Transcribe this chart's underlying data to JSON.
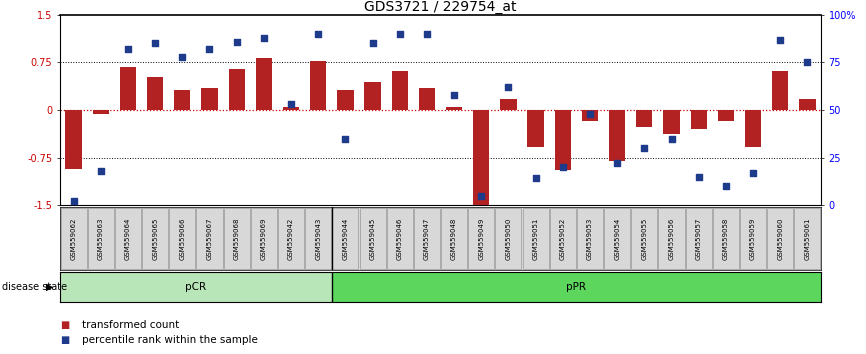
{
  "title": "GDS3721 / 229754_at",
  "samples": [
    "GSM559062",
    "GSM559063",
    "GSM559064",
    "GSM559065",
    "GSM559066",
    "GSM559067",
    "GSM559068",
    "GSM559069",
    "GSM559042",
    "GSM559043",
    "GSM559044",
    "GSM559045",
    "GSM559046",
    "GSM559047",
    "GSM559048",
    "GSM559049",
    "GSM559050",
    "GSM559051",
    "GSM559052",
    "GSM559053",
    "GSM559054",
    "GSM559055",
    "GSM559056",
    "GSM559057",
    "GSM559058",
    "GSM559059",
    "GSM559060",
    "GSM559061"
  ],
  "transformed_count": [
    -0.93,
    -0.06,
    0.68,
    0.52,
    0.32,
    0.35,
    0.65,
    0.82,
    0.05,
    0.78,
    0.32,
    0.44,
    0.62,
    0.35,
    0.04,
    -1.5,
    0.18,
    -0.58,
    -0.95,
    -0.17,
    -0.8,
    -0.27,
    -0.38,
    -0.3,
    -0.18,
    -0.58,
    0.62,
    0.18
  ],
  "percentile_rank": [
    2,
    18,
    82,
    85,
    78,
    82,
    86,
    88,
    53,
    90,
    35,
    85,
    90,
    90,
    58,
    5,
    62,
    14,
    20,
    48,
    22,
    30,
    35,
    15,
    10,
    17,
    87,
    75
  ],
  "pcr_count": 10,
  "bar_color": "#b22222",
  "dot_color": "#1e3a8a",
  "pcr_facecolor": "#b8e6b8",
  "ppr_facecolor": "#5cd65c",
  "background": "#ffffff",
  "bar_width": 0.6,
  "ylim": [
    -1.5,
    1.5
  ],
  "yticks_left": [
    -1.5,
    -0.75,
    0.0,
    0.75,
    1.5
  ],
  "ytick_right": [
    0,
    25,
    50,
    75,
    100
  ],
  "title_fontsize": 10,
  "axis_fontsize": 7,
  "sample_fontsize": 5,
  "legend_fontsize": 7.5,
  "ds_fontsize": 7.5
}
